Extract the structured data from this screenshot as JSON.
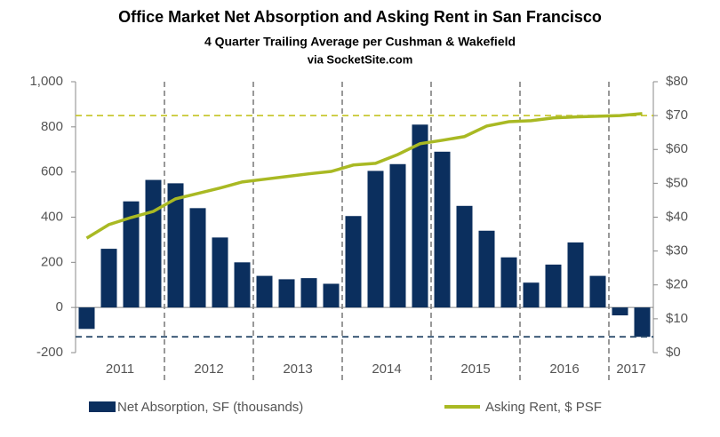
{
  "chart_data": {
    "type": "bar_line",
    "title": "Office Market Net Absorption and Asking Rent in San Francisco",
    "subtitle": "4 Quarter Trailing Average per Cushman & Wakefield",
    "source": "via SocketSite.com",
    "categories": [
      null,
      null,
      null,
      null,
      null,
      null,
      null,
      null,
      null,
      null,
      null,
      null,
      null,
      null,
      null,
      null,
      null,
      null,
      null,
      null,
      null,
      null,
      null,
      null,
      null,
      null
    ],
    "groups": [
      {
        "label": "2011",
        "size": 4
      },
      {
        "label": "2012",
        "size": 4
      },
      {
        "label": "2013",
        "size": 4
      },
      {
        "label": "2014",
        "size": 4
      },
      {
        "label": "2015",
        "size": 4
      },
      {
        "label": "2016",
        "size": 4
      },
      {
        "label": "2017",
        "size": 2
      }
    ],
    "series": [
      {
        "name": "Net Absorption, SF (thousands)",
        "type": "bar",
        "color": "#0b2f5e",
        "values": [
          -95,
          260,
          470,
          565,
          550,
          440,
          310,
          200,
          140,
          125,
          130,
          105,
          405,
          605,
          635,
          810,
          690,
          450,
          340,
          222,
          110,
          190,
          288,
          140,
          -35,
          -130
        ]
      },
      {
        "name": "Asking Rent, $ PSF",
        "type": "line",
        "axis": "y2",
        "color": "#a9b923",
        "values": [
          33.8,
          37.8,
          39.9,
          41.7,
          45.4,
          47.0,
          48.6,
          50.4,
          51.2,
          52.0,
          52.8,
          53.5,
          55.4,
          55.9,
          58.5,
          61.7,
          62.7,
          63.8,
          66.9,
          68.2,
          68.5,
          69.3,
          69.6,
          69.8,
          70.0,
          70.6
        ]
      }
    ],
    "reference_lines": [
      {
        "axis": "y2",
        "value": 70,
        "color": "#c8c832"
      },
      {
        "axis": "y",
        "value": -130,
        "color": "#2e4e6e"
      }
    ],
    "ylim": [
      -200,
      1000
    ],
    "yticks": [
      -200,
      0,
      200,
      400,
      600,
      800,
      {
        "value": 1000,
        "label": "1,000"
      }
    ],
    "y2lim": [
      0,
      80
    ],
    "y2ticks": [
      {
        "value": 0,
        "label": "$0"
      },
      {
        "value": 10,
        "label": "$10"
      },
      {
        "value": 20,
        "label": "$20"
      },
      {
        "value": 30,
        "label": "$30"
      },
      {
        "value": 40,
        "label": "$40"
      },
      {
        "value": 50,
        "label": "$50"
      },
      {
        "value": 60,
        "label": "$60"
      },
      {
        "value": 70,
        "label": "$70"
      },
      {
        "value": 80,
        "label": "$80"
      }
    ]
  }
}
